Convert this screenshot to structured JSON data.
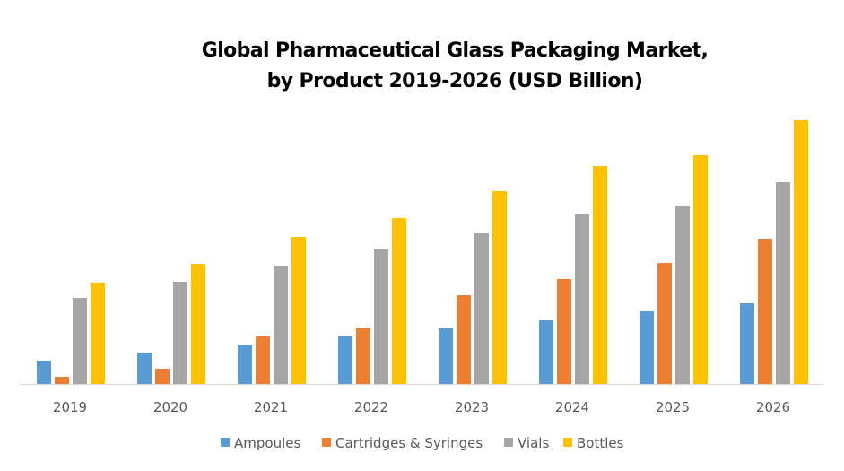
{
  "chart_data": {
    "type": "bar",
    "title": [
      "Global Pharmaceutical Glass Packaging Market,",
      "by Product 2019-2026 (USD Billion)"
    ],
    "xlabel": "",
    "ylabel": "",
    "y_axis_shown": false,
    "values_note": "Estimated relative values; the chart has no y-axis scale, so these are bar heights and not actual USD Billion figures.",
    "grid": false,
    "legend_position": "bottom",
    "categories": [
      "2019",
      "2020",
      "2021",
      "2022",
      "2023",
      "2024",
      "2025",
      "2026"
    ],
    "ylim": [
      0,
      30
    ],
    "series": [
      {
        "name": "Ampoules",
        "color": "#5B9BD5",
        "values": [
          2.6,
          3.5,
          4.4,
          5.3,
          6.2,
          7.1,
          8.1,
          9.0
        ]
      },
      {
        "name": "Cartridges & Syringes",
        "color": "#ED7D31",
        "values": [
          0.8,
          1.7,
          5.3,
          6.2,
          9.9,
          11.7,
          13.5,
          16.2
        ]
      },
      {
        "name": "Vials",
        "color": "#A5A5A5",
        "values": [
          9.6,
          11.4,
          13.2,
          15.0,
          16.8,
          18.9,
          19.8,
          22.5
        ]
      },
      {
        "name": "Bottles",
        "color": "#FFC000",
        "values": [
          11.3,
          13.4,
          16.4,
          18.5,
          21.5,
          24.3,
          25.5,
          29.4
        ]
      }
    ]
  }
}
